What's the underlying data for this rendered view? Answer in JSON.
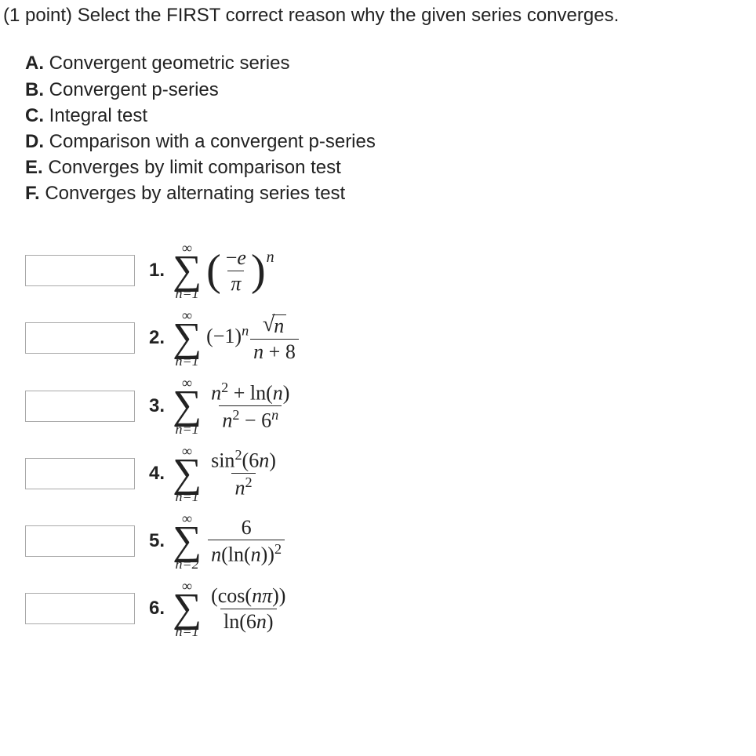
{
  "colors": {
    "text": "#222222",
    "background": "#ffffff",
    "input_border": "#a9a9a9"
  },
  "prompt": "(1 point) Select the FIRST correct reason why the given series converges.",
  "options": [
    {
      "letter": "A.",
      "text": "Convergent geometric series"
    },
    {
      "letter": "B.",
      "text": "Convergent p-series"
    },
    {
      "letter": "C.",
      "text": "Integral test"
    },
    {
      "letter": "D.",
      "text": "Comparison with a convergent p-series"
    },
    {
      "letter": "E.",
      "text": "Converges by limit comparison test"
    },
    {
      "letter": "F.",
      "text": "Converges by alternating series test"
    }
  ],
  "sigma": {
    "top": "∞",
    "glyph": "∑"
  },
  "problems": [
    {
      "num": "1.",
      "lower": "n=1",
      "expr": {
        "type": "group_power",
        "inner": {
          "type": "frac",
          "num_html": "−<span class='ital'>e</span>",
          "den_html": "<span class='ital'>π</span>"
        },
        "power": "n"
      }
    },
    {
      "num": "2.",
      "lower": "n=1",
      "expr": {
        "type": "seq",
        "parts": [
          {
            "type": "plain",
            "html": "(−1)<sup class='s'><span class='ital'>n</span></sup>"
          },
          {
            "type": "frac",
            "num_html": "<span class='sqrt'><span class='sqrt-sign'>√</span><span class='sqrt-arg'><span class='ital'>n</span></span></span>",
            "den_html": "<span class='ital'>n</span> + 8"
          }
        ]
      }
    },
    {
      "num": "3.",
      "lower": "n=1",
      "expr": {
        "type": "frac",
        "num_html": "<span class='ital'>n</span><sup class='s'>2</sup> + ln(<span class='ital'>n</span>)",
        "den_html": "<span class='ital'>n</span><sup class='s'>2</sup> − 6<sup class='s'><span class='ital'>n</span></sup>"
      }
    },
    {
      "num": "4.",
      "lower": "n=1",
      "expr": {
        "type": "frac",
        "num_html": "sin<sup class='s'>2</sup>(6<span class='ital'>n</span>)",
        "den_html": "<span class='ital'>n</span><sup class='s'>2</sup>"
      }
    },
    {
      "num": "5.",
      "lower": "n=2",
      "expr": {
        "type": "frac",
        "num_html": "6",
        "den_html": "<span class='ital'>n</span>(ln(<span class='ital'>n</span>))<sup class='s'>2</sup>"
      }
    },
    {
      "num": "6.",
      "lower": "n=1",
      "expr": {
        "type": "frac",
        "num_html": "(cos(<span class='ital'>nπ</span>))",
        "den_html": "ln(6<span class='ital'>n</span>)"
      }
    }
  ]
}
